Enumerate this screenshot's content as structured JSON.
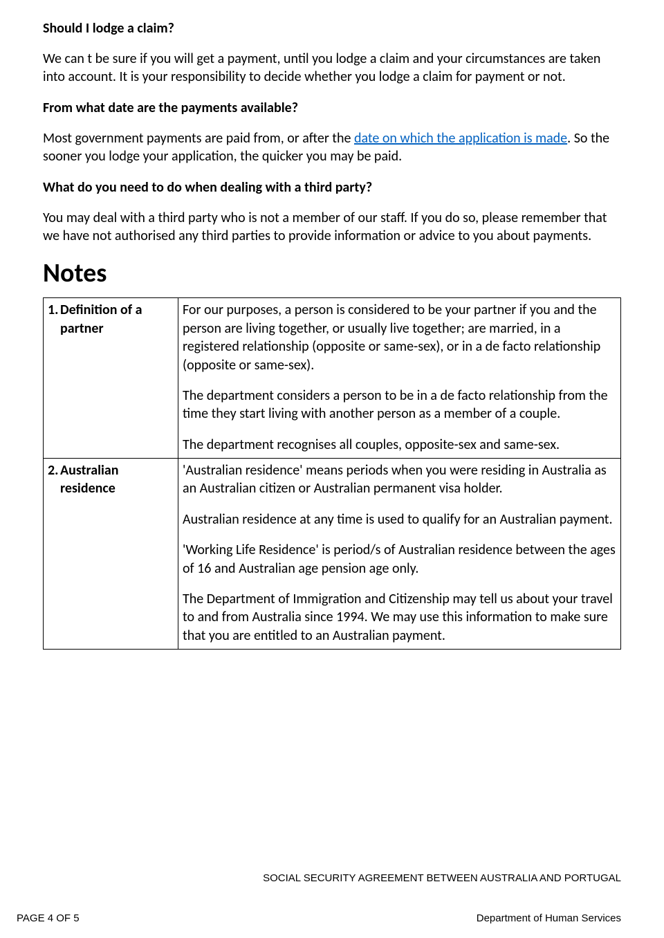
{
  "section1": {
    "heading": "Should I lodge a claim?",
    "para": "We can t be sure if you will get a payment, until you lodge a claim and your circumstances are taken into account. It is your responsibility to decide whether you lodge a claim for payment or not."
  },
  "section2": {
    "heading": "From what date are the payments available?",
    "para_pre": "Most government payments are paid from, or after the ",
    "para_link": "date on which the application is made",
    "para_post": ". So the sooner you lodge your application, the quicker you may be paid."
  },
  "section3": {
    "heading": "What do you need to do when dealing with a third party?",
    "para": "You may deal with a third party who is not a member of our staff. If you do so, please remember that we have not authorised any third parties to provide information or advice to you about payments."
  },
  "notes_heading": "Notes",
  "notes": {
    "row1": {
      "num": "1.",
      "term": "Definition of a partner",
      "p1": "For our purposes, a person is considered to be your partner if you and the person are living together, or usually live together; are married, in a registered relationship (opposite or same-sex), or in a de facto relationship (opposite or same-sex).",
      "p2": "The department considers a person to be in a de facto relationship from the time they start living with another person as a member of a couple.",
      "p3": "The department recognises all couples, opposite-sex and same-sex."
    },
    "row2": {
      "num": "2.",
      "term": "Australian residence",
      "p1": "'Australian residence' means periods when you were residing in Australia as an Australian citizen or Australian permanent visa holder.",
      "p2": "Australian residence at any time is used to qualify for an Australian payment.",
      "p3": "'Working Life Residence' is period/s of Australian residence between the ages of 16 and Australian age pension age only.",
      "p4": "The Department of Immigration and Citizenship may tell us about your travel to and from Australia since 1994. We may use this information to make sure that you are entitled to an Australian payment."
    }
  },
  "footer": {
    "title": "SOCIAL SECURITY AGREEMENT BETWEEN AUSTRALIA AND PORTUGAL",
    "page": "PAGE 4 OF 5",
    "dept": "Department of Human Services"
  }
}
